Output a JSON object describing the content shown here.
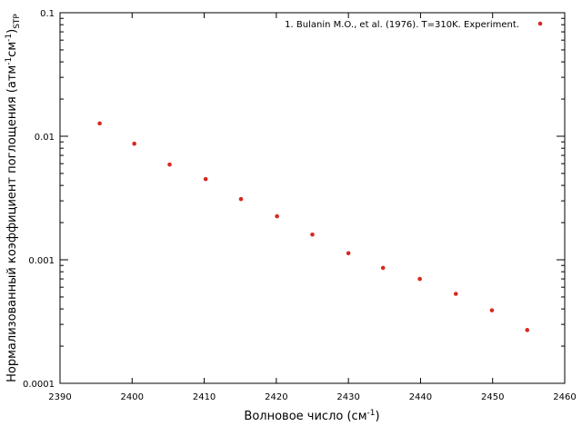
{
  "chart_data": {
    "type": "scatter",
    "title": "",
    "xlabel": {
      "base": "Волновое число (см",
      "sup": "-1",
      "tail": ")"
    },
    "ylabel": {
      "base": "Нормализованный коэффициент поглощения (атм",
      "sup1": "-1",
      "mid": "см",
      "sup2": "-1",
      "close": ")",
      "sub": "STP"
    },
    "xlim": [
      2390,
      2460
    ],
    "ylim": [
      0.0001,
      0.1
    ],
    "yscale": "log",
    "grid": false,
    "legend_position": "top-right",
    "x_ticks": [
      "2390",
      "2400",
      "2410",
      "2420",
      "2430",
      "2440",
      "2450",
      "2460"
    ],
    "y_ticks": [
      "0.0001",
      "0.001",
      "0.01",
      "0.1"
    ],
    "series": [
      {
        "name": "1. Bulanin M.O., et al. (1976). T=310K. Experiment.",
        "color": "#d62a20",
        "x": [
          2395.5,
          2400.3,
          2405.2,
          2410.2,
          2415.1,
          2420.1,
          2425.0,
          2430.0,
          2434.8,
          2439.9,
          2444.9,
          2449.9,
          2454.8
        ],
        "y": [
          0.0127,
          0.0087,
          0.0059,
          0.0045,
          0.0031,
          0.00225,
          0.0016,
          0.00113,
          0.00086,
          0.0007,
          0.00053,
          0.00039,
          0.00027
        ]
      }
    ]
  }
}
